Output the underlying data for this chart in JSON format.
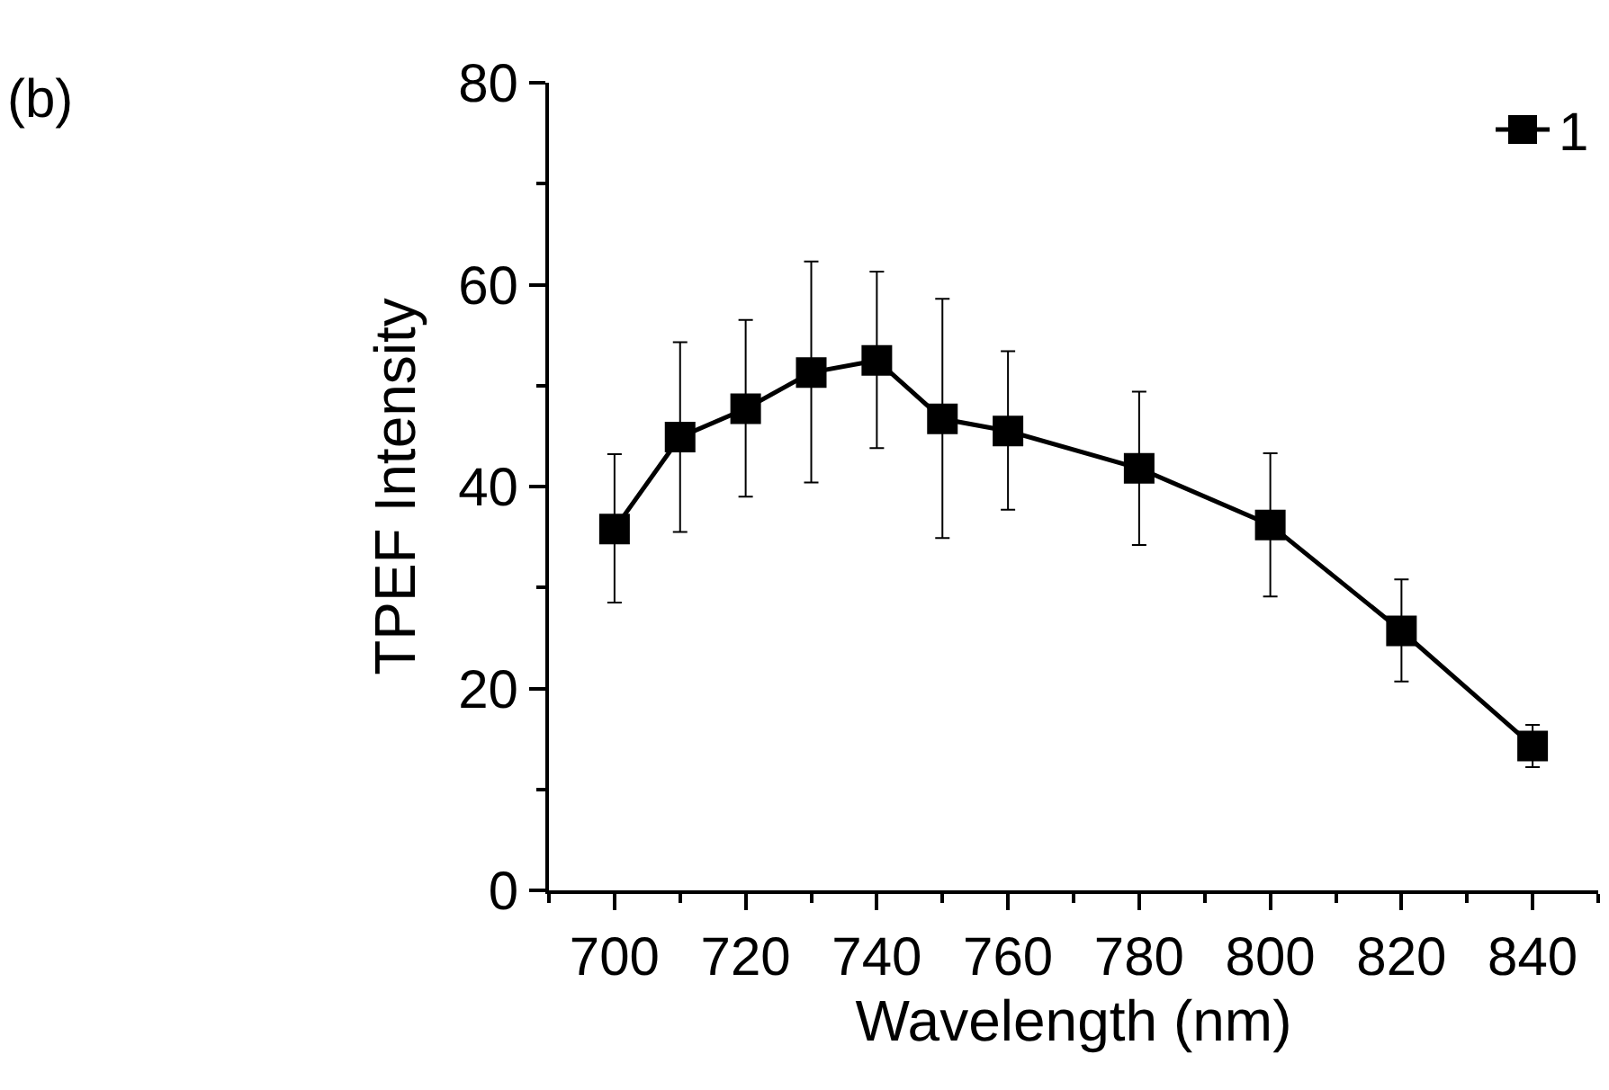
{
  "chart_data": {
    "type": "line",
    "xlabel": "Wavelength (nm)",
    "ylabel": "TPEF Intensity",
    "annotations": [
      "(b)"
    ],
    "x": [
      700,
      710,
      720,
      730,
      740,
      750,
      760,
      780,
      800,
      820,
      840
    ],
    "series": [
      {
        "name": "1",
        "color": "#000000",
        "values": [
          35.8,
          44.9,
          47.7,
          51.3,
          52.5,
          46.7,
          45.5,
          41.8,
          36.2,
          25.7,
          14.3
        ],
        "errors": [
          [
            28.5,
            43.2
          ],
          [
            35.5,
            54.3
          ],
          [
            39.0,
            56.5
          ],
          [
            40.4,
            62.3
          ],
          [
            43.8,
            61.3
          ],
          [
            34.9,
            58.6
          ],
          [
            37.7,
            53.4
          ],
          [
            34.2,
            49.4
          ],
          [
            29.1,
            43.3
          ],
          [
            20.7,
            30.8
          ],
          [
            12.2,
            16.4
          ]
        ]
      }
    ],
    "xlim": [
      690,
      850
    ],
    "xticks": [
      700,
      720,
      740,
      760,
      780,
      800,
      820,
      840
    ],
    "ylim": [
      0,
      80
    ],
    "yticks": [
      0,
      20,
      40,
      60,
      80
    ],
    "grid": false,
    "legend": "top right",
    "marker": "square",
    "line_style": "solid"
  }
}
